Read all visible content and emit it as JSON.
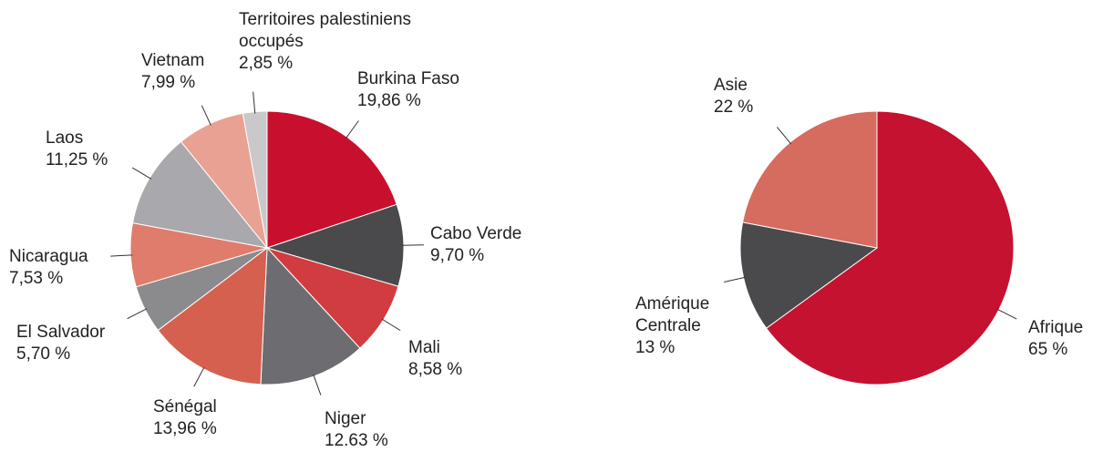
{
  "chart_data": [
    {
      "type": "pie",
      "categories": [
        "Burkina Faso",
        "Cabo Verde",
        "Mali",
        "Niger",
        "Sénégal",
        "El Salvador",
        "Nicaragua",
        "Laos",
        "Vietnam",
        "Territoires palestiniens occupés"
      ],
      "values": [
        19.86,
        9.7,
        8.58,
        12.63,
        13.96,
        5.7,
        7.53,
        11.25,
        7.99,
        2.85
      ],
      "value_labels": [
        "19,86 %",
        "9,70 %",
        "8,58 %",
        "12.63 %",
        "13,96 %",
        "5,70 %",
        "7,53 %",
        "11,25 %",
        "7,99 %",
        "2,85 %"
      ],
      "colors": [
        "#c8102e",
        "#4a4a4c",
        "#d03c3f",
        "#6d6d71",
        "#d5604f",
        "#8b8b8e",
        "#e07c6b",
        "#a9a9ad",
        "#e9a193",
        "#c9c9cb"
      ]
    },
    {
      "type": "pie",
      "categories": [
        "Afrique",
        "Amérique Centrale",
        "Asie"
      ],
      "values": [
        65,
        13,
        22
      ],
      "value_labels": [
        "65 %",
        "13 %",
        "22 %"
      ],
      "colors": [
        "#c41230",
        "#4a4a4c",
        "#d66b5f"
      ]
    }
  ]
}
